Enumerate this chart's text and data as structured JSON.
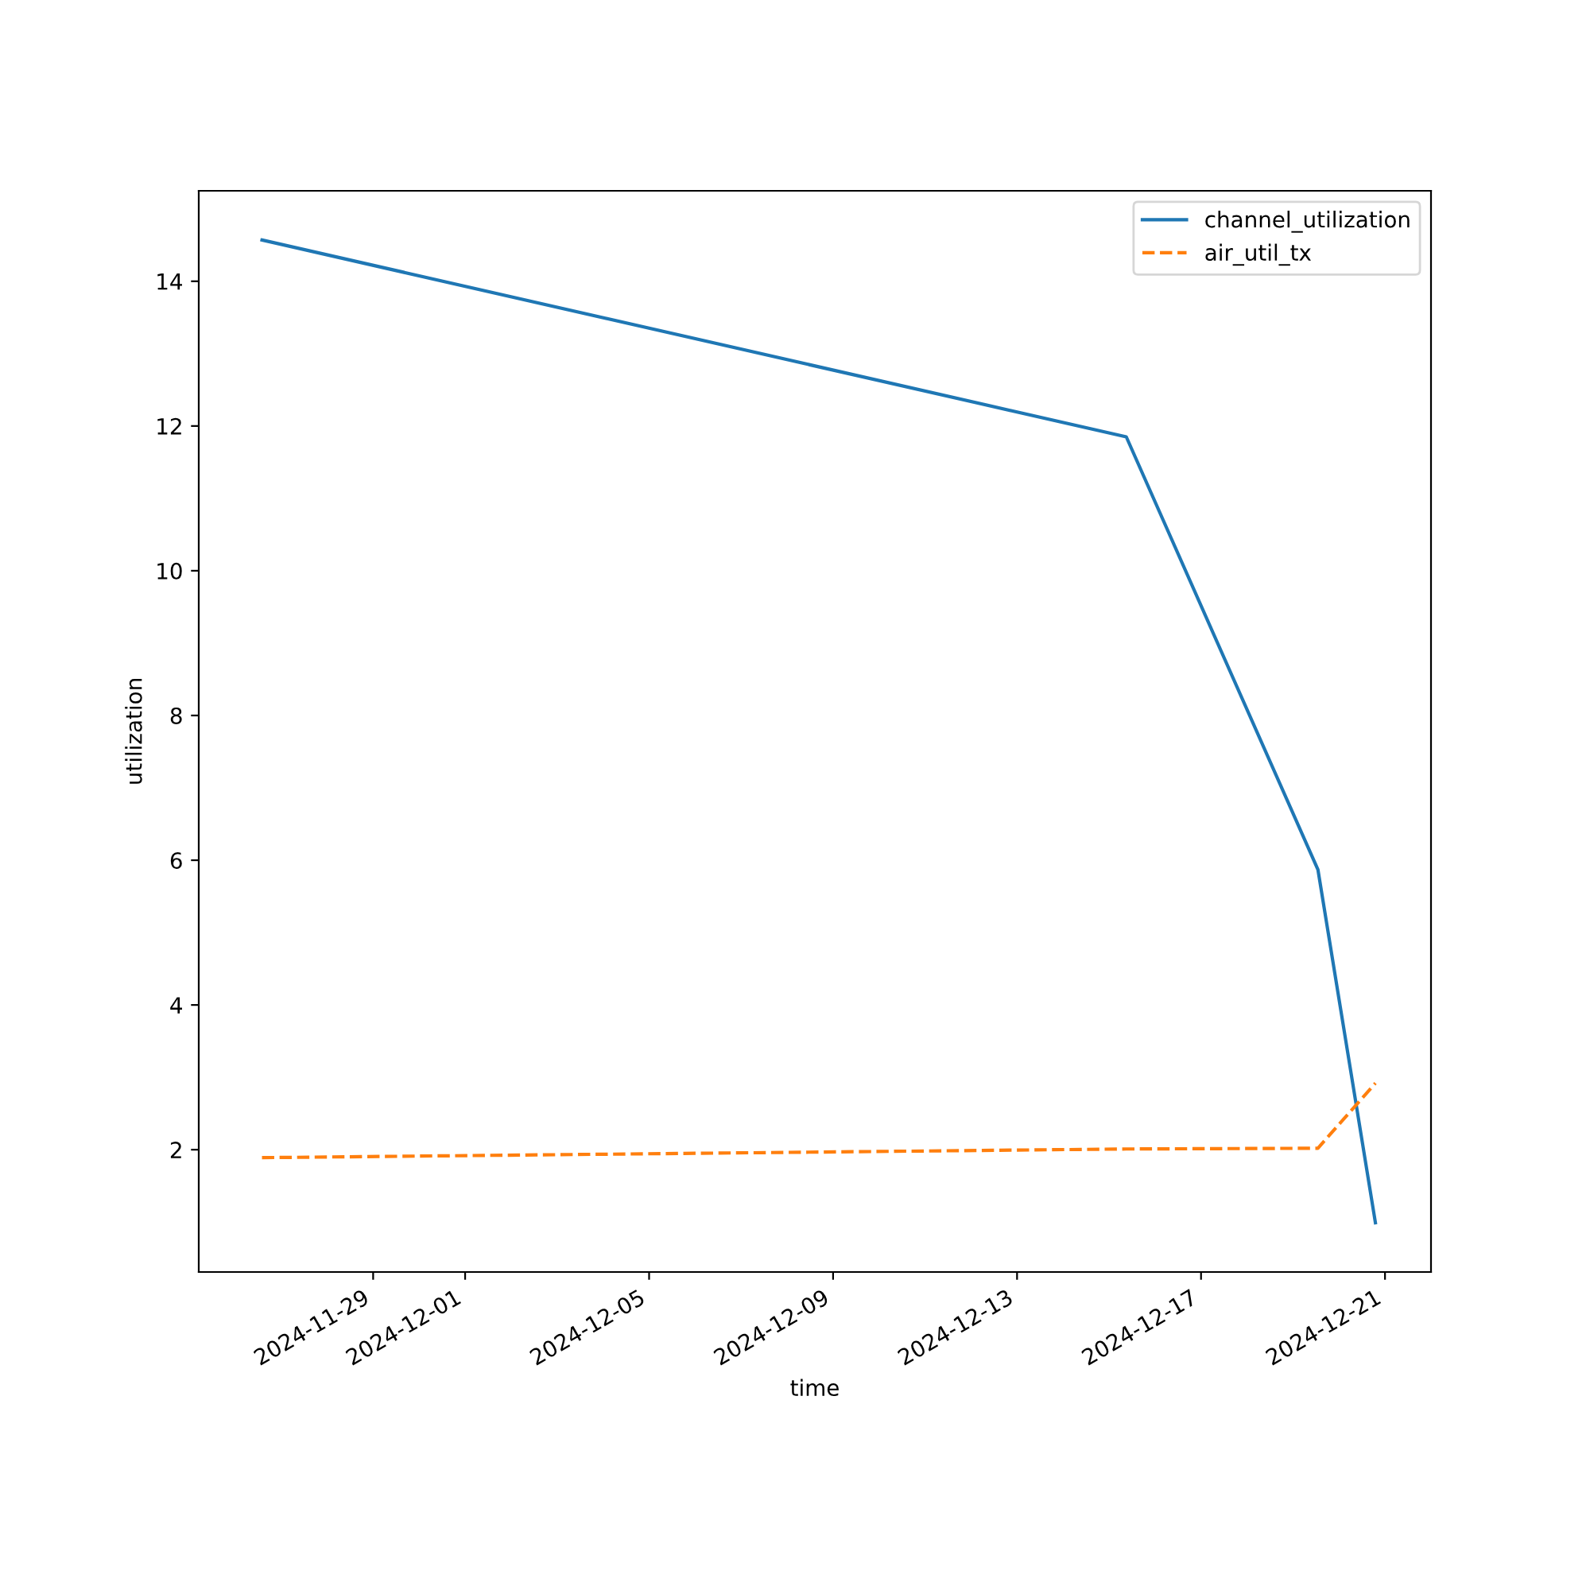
{
  "chart_data": {
    "type": "line",
    "xlabel": "time",
    "ylabel": "utilization",
    "x": [
      "2024-11-26T14:00",
      "2024-12-15T09:00",
      "2024-12-19T13:00",
      "2024-12-20T19:00"
    ],
    "series": [
      {
        "name": "channel_utilization",
        "color": "#1f77b4",
        "line_style": "solid",
        "values": [
          14.57,
          11.85,
          5.87,
          0.99
        ]
      },
      {
        "name": "air_util_tx",
        "color": "#ff7f0e",
        "line_style": "dashed",
        "values": [
          1.89,
          2.01,
          2.02,
          2.92
        ]
      }
    ],
    "xlim": [
      "2024-11-25T05:00",
      "2024-12-22T00:00"
    ],
    "xticks": [
      "2024-11-29",
      "2024-12-01",
      "2024-12-05",
      "2024-12-09",
      "2024-12-13",
      "2024-12-17",
      "2024-12-21"
    ],
    "ylim": [
      0.31,
      15.25
    ],
    "yticks": [
      2,
      4,
      6,
      8,
      10,
      12,
      14
    ],
    "grid": false,
    "legend": "top right"
  }
}
